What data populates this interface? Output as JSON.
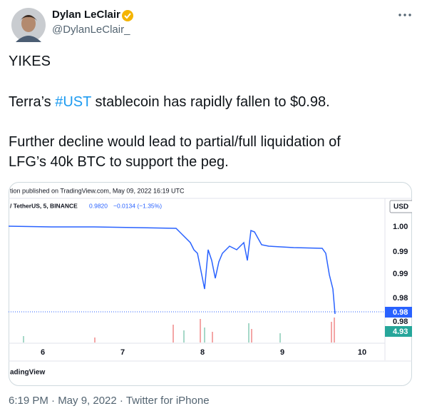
{
  "author": {
    "name": "Dylan LeClair",
    "handle": "@DylanLeClair_"
  },
  "tweet": {
    "line1": "YIKES",
    "line2_start": "Terra’s ",
    "hashtag": "#UST",
    "line2_end": " stablecoin has rapidly fallen to $0.98.",
    "line3": "Further decline would lead to partial/full liquidation of",
    "line4": "LFG’s 40k BTC to support the peg."
  },
  "image": {
    "header": "tion published on TradingView.com, May 09, 2022 16:19 UTC",
    "symbol": "/ TetherUS, 5, BINANCE",
    "price": "0.9820",
    "change": "−0.0134 (−1.35%)",
    "currency": "USD",
    "price_labels": [
      "1.00",
      "0.99",
      "0.99",
      "0.98"
    ],
    "current_price": "0.98",
    "low_price": "0.98",
    "volume": "4.93",
    "x_labels": [
      "6",
      "7",
      "8",
      "9",
      "10"
    ],
    "brand": "adingView"
  },
  "footer": {
    "timestamp": "6:19 PM · May 9, 2022 · ",
    "source": "Twitter for iPhone"
  }
}
